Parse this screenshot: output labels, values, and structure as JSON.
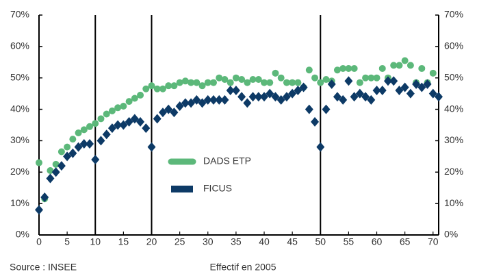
{
  "chart_data": {
    "type": "scatter",
    "xlabel": "Effectif en 2005",
    "source": "Source : INSEE",
    "xlim": [
      0,
      71
    ],
    "xticks": [
      0,
      5,
      10,
      15,
      20,
      25,
      30,
      35,
      40,
      45,
      50,
      55,
      60,
      65,
      70
    ],
    "ylim": [
      0,
      70
    ],
    "yticks": [
      {
        "value": 0,
        "label": "0%"
      },
      {
        "value": 10,
        "label": "10%"
      },
      {
        "value": 20,
        "label": "20%"
      },
      {
        "value": 30,
        "label": "30%"
      },
      {
        "value": 40,
        "label": "40%"
      },
      {
        "value": 50,
        "label": "50%"
      },
      {
        "value": 60,
        "label": "60%"
      },
      {
        "value": 70,
        "label": "70%"
      }
    ],
    "y2lim": [
      0,
      70
    ],
    "y2ticks": [
      {
        "value": 0,
        "label": "0%"
      },
      {
        "value": 10,
        "label": "10%"
      },
      {
        "value": 20,
        "label": "20%"
      },
      {
        "value": 30,
        "label": "30%"
      },
      {
        "value": 40,
        "label": "40%"
      },
      {
        "value": 50,
        "label": "50%"
      },
      {
        "value": 60,
        "label": "60%"
      },
      {
        "value": 70,
        "label": "70%"
      }
    ],
    "vlines": [
      10,
      20,
      50
    ],
    "series": [
      {
        "name": "DADS ETP",
        "color": "#5cb87a",
        "marker": "circle",
        "x": [
          0,
          1,
          2,
          3,
          4,
          5,
          6,
          7,
          8,
          9,
          10,
          11,
          12,
          13,
          14,
          15,
          16,
          17,
          18,
          19,
          20,
          21,
          22,
          23,
          24,
          25,
          26,
          27,
          28,
          29,
          30,
          31,
          32,
          33,
          34,
          35,
          36,
          37,
          38,
          39,
          40,
          41,
          42,
          43,
          44,
          45,
          46,
          47,
          48,
          49,
          50,
          51,
          52,
          53,
          54,
          55,
          56,
          57,
          58,
          59,
          60,
          61,
          62,
          63,
          64,
          65,
          66,
          67,
          68,
          69,
          70
        ],
        "values": [
          23,
          11.5,
          20.5,
          22.5,
          26.5,
          28,
          30.5,
          32.5,
          33.5,
          34.5,
          35.5,
          37,
          38.5,
          39.5,
          40.5,
          41,
          42.5,
          43.5,
          44.5,
          46.5,
          47.5,
          46.5,
          46.5,
          47.5,
          47.5,
          48.5,
          49,
          48.5,
          48.5,
          47.5,
          48.5,
          48.5,
          50,
          49.5,
          48.5,
          50,
          49.5,
          48.5,
          49.5,
          49.5,
          48.5,
          48.5,
          51.5,
          50,
          48.5,
          48.5,
          48.5,
          47,
          52.5,
          50,
          48.5,
          49.5,
          49,
          52.5,
          53,
          53,
          53,
          48.5,
          50,
          50,
          50,
          53,
          50,
          54,
          54,
          55.5,
          54,
          48.5,
          53,
          48.5,
          51.5
        ]
      },
      {
        "name": "FICUS",
        "color": "#0d3a66",
        "marker": "diamond",
        "x": [
          0,
          1,
          2,
          3,
          4,
          5,
          6,
          7,
          8,
          9,
          10,
          11,
          12,
          13,
          14,
          15,
          16,
          17,
          18,
          19,
          20,
          21,
          22,
          23,
          24,
          25,
          26,
          27,
          28,
          29,
          30,
          31,
          32,
          33,
          34,
          35,
          36,
          37,
          38,
          39,
          40,
          41,
          42,
          43,
          44,
          45,
          46,
          47,
          48,
          49,
          50,
          51,
          52,
          53,
          54,
          55,
          56,
          57,
          58,
          59,
          60,
          61,
          62,
          63,
          64,
          65,
          66,
          67,
          68,
          69,
          70,
          71
        ],
        "values": [
          8,
          12,
          18,
          20,
          22,
          25,
          26,
          28,
          29,
          29,
          24,
          30,
          32,
          34,
          35,
          35,
          36,
          37,
          36,
          34,
          28,
          37,
          39,
          40,
          39,
          41,
          42,
          42,
          43,
          42,
          43,
          43,
          43,
          43,
          46,
          46,
          44,
          42,
          44,
          44,
          44,
          45,
          44,
          43,
          44,
          45,
          46,
          47,
          40,
          36,
          28,
          40,
          48,
          44,
          43,
          49,
          44,
          45,
          44,
          43,
          46,
          46,
          49,
          49,
          46,
          47,
          45,
          48,
          47,
          48,
          45,
          44
        ]
      }
    ],
    "legend": "center-left"
  }
}
